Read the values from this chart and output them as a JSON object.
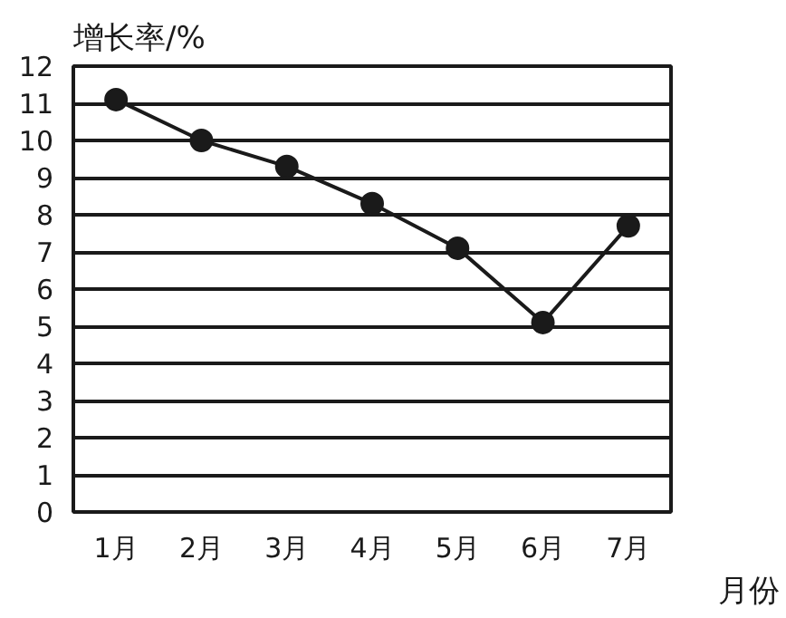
{
  "chart_data": {
    "type": "line",
    "xlabel": "月份",
    "ylabel": "增长率/%",
    "categories": [
      "1月",
      "2月",
      "3月",
      "4月",
      "5月",
      "6月",
      "7月"
    ],
    "series": [
      {
        "color": "#1a1a1a",
        "values": [
          11.1,
          10.0,
          9.3,
          8.3,
          7.1,
          5.1,
          7.7
        ]
      }
    ],
    "ylim": [
      0,
      12
    ],
    "yticks": [
      0,
      1,
      2,
      3,
      4,
      5,
      6,
      7,
      8,
      9,
      10,
      11,
      12
    ],
    "grid": "y",
    "marker": "circle",
    "line_style": "solid"
  }
}
